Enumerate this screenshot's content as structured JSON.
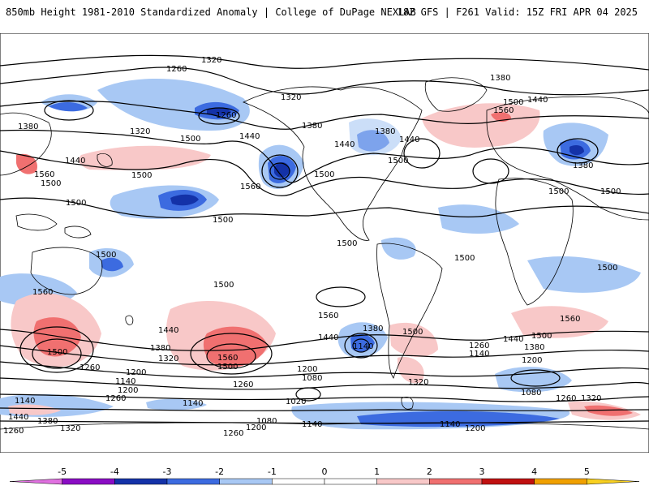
{
  "header": {
    "title": "850mb Height 1981-2010 Standardized Anomaly | College of DuPage NEXLAB",
    "run_info": "18Z GFS | F261 Valid: 15Z FRI APR 04 2025"
  },
  "colors": {
    "land_coast": "#000000",
    "contour": "#000000",
    "background": "#ffffff"
  },
  "colorbar": {
    "ticks": [
      "-5",
      "-4",
      "-3",
      "-2",
      "-1",
      "0",
      "1",
      "2",
      "3",
      "4",
      "5"
    ],
    "tick_values": [
      -5,
      -4,
      -3,
      -2,
      -1,
      0,
      1,
      2,
      3,
      4,
      5
    ],
    "range": [
      -6,
      6
    ],
    "bins": [
      {
        "from": -5.5,
        "to": -5,
        "color": "#e070e0"
      },
      {
        "from": -5,
        "to": -4,
        "color": "#8a0cc4"
      },
      {
        "from": -4,
        "to": -3,
        "color": "#1432a8"
      },
      {
        "from": -3,
        "to": -2,
        "color": "#3c6be0"
      },
      {
        "from": -2,
        "to": -1,
        "color": "#a8c8f4"
      },
      {
        "from": -1,
        "to": 0,
        "color": "#ffffff"
      },
      {
        "from": 0,
        "to": 1,
        "color": "#ffffff"
      },
      {
        "from": 1,
        "to": 2,
        "color": "#f8c8c8"
      },
      {
        "from": 2,
        "to": 3,
        "color": "#f07070"
      },
      {
        "from": 3,
        "to": 4,
        "color": "#c01010"
      },
      {
        "from": 4,
        "to": 5,
        "color": "#f0a000"
      },
      {
        "from": 5,
        "to": 5.5,
        "color": "#f8d020"
      }
    ]
  },
  "contour_labels": [
    "1320",
    "1260",
    "1380",
    "1440",
    "1500",
    "1560",
    "1200",
    "1140",
    "1080",
    "1020"
  ]
}
